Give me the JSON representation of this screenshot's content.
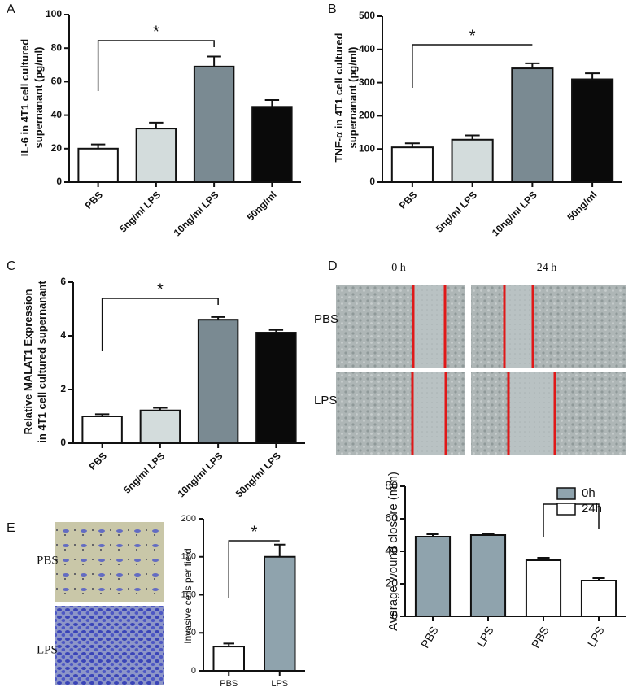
{
  "chart_data": [
    {
      "type": "bar",
      "label": "A",
      "ylabel": [
        "IL-6 in 4T1 cell cultured",
        "supernanant (pg/ml)"
      ],
      "categories": [
        "PBS",
        "5ng/ml LPS",
        "10ng/ml LPS",
        "50ng/ml"
      ],
      "values": [
        20,
        32,
        69,
        45
      ],
      "errors": [
        2.5,
        3.5,
        6,
        4
      ],
      "colors": [
        "#ffffff",
        "#d3dcdc",
        "#7a8a92",
        "#0a0a0a"
      ],
      "ylim": [
        0,
        100
      ],
      "yticks": [
        0,
        20,
        40,
        60,
        80,
        100
      ],
      "annotation": "*"
    },
    {
      "type": "bar",
      "label": "B",
      "ylabel": [
        "TNF-α  in 4T1 cell cultured",
        "supernanant (pg/ml)"
      ],
      "categories": [
        "PBS",
        "5ng/ml LPS",
        "10ng/ml LPS",
        "50ng/ml"
      ],
      "values": [
        105,
        128,
        343,
        310
      ],
      "errors": [
        12,
        13,
        15,
        18
      ],
      "colors": [
        "#ffffff",
        "#d3dcdc",
        "#7a8a92",
        "#0a0a0a"
      ],
      "ylim": [
        0,
        500
      ],
      "yticks": [
        0,
        100,
        200,
        300,
        400,
        500
      ],
      "annotation": "*"
    },
    {
      "type": "bar",
      "label": "C",
      "ylabel": [
        "Relative MALAT1 Expression",
        "in 4T1 cell cultured supernanant"
      ],
      "categories": [
        "PBS",
        "5ng/ml LPS",
        "10ng/ml LPS",
        "50ng/ml LPS"
      ],
      "values": [
        1.0,
        1.22,
        4.6,
        4.12
      ],
      "errors": [
        0.08,
        0.1,
        0.1,
        0.1
      ],
      "colors": [
        "#ffffff",
        "#d3dcdc",
        "#7a8a92",
        "#0a0a0a"
      ],
      "ylim": [
        0,
        6
      ],
      "yticks": [
        0,
        2,
        4,
        6
      ],
      "annotation": "*"
    },
    {
      "type": "bar",
      "label": "D",
      "image_columns": [
        "0 h",
        "24 h"
      ],
      "image_rows": [
        "PBS",
        "LPS"
      ],
      "ylabel": [
        "Average wound closure (mm)"
      ],
      "categories": [
        "PBS",
        "LPS",
        "PBS",
        "LPS"
      ],
      "series": [
        {
          "name": "0h",
          "color": "#8fa3ad",
          "values": [
            49,
            50,
            null,
            null
          ],
          "errors": [
            1.5,
            1,
            null,
            null
          ]
        },
        {
          "name": "24h",
          "color": "#ffffff",
          "values": [
            null,
            null,
            34.5,
            22
          ],
          "errors": [
            null,
            null,
            1.5,
            1.5
          ]
        }
      ],
      "ylim": [
        0,
        80
      ],
      "yticks": [
        0,
        20,
        40,
        60,
        80
      ],
      "legend": "upper right",
      "annotation": "*"
    },
    {
      "type": "bar",
      "label": "E",
      "image_rows": [
        "PBS",
        "LPS"
      ],
      "ylabel": [
        "Invasive cells per field"
      ],
      "categories": [
        "PBS",
        "LPS"
      ],
      "values": [
        32,
        150
      ],
      "errors": [
        4,
        16
      ],
      "colors": [
        "#ffffff",
        "#8fa3ad"
      ],
      "ylim": [
        0,
        200
      ],
      "yticks": [
        0,
        50,
        100,
        150,
        200
      ],
      "annotation": "*"
    }
  ]
}
